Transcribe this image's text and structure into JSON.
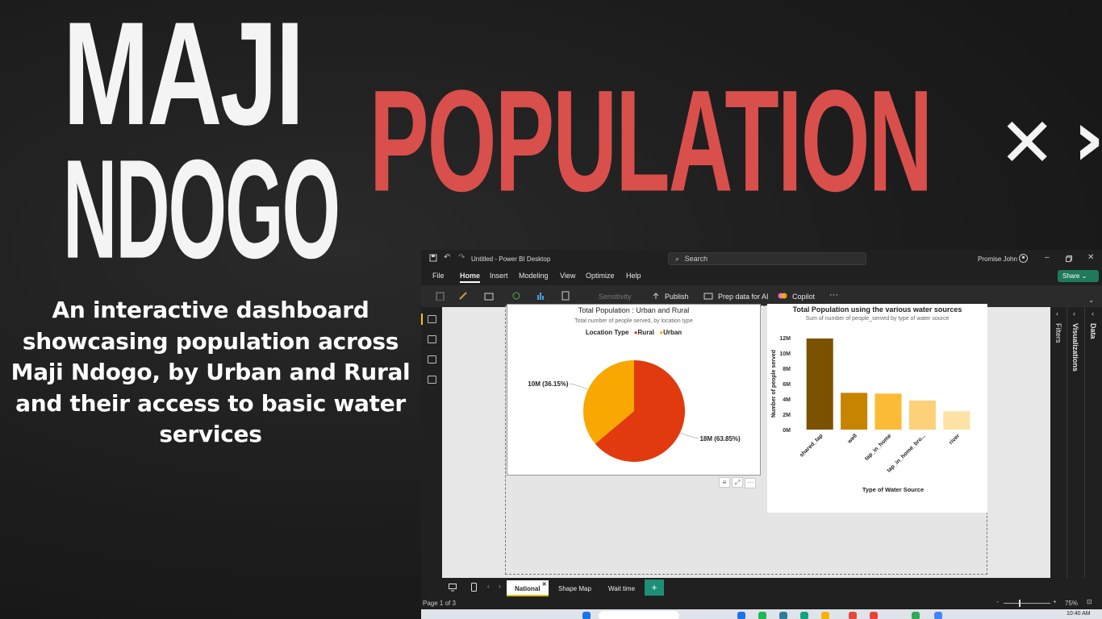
{
  "hero": {
    "line1": "MAJI",
    "line2": "NDOGO",
    "line3": "POPULATION",
    "cross": "✕",
    "chevron": "›",
    "description": "An interactive dashboard showcasing population across Maji Ndogo, by Urban and Rural and their access to basic water services"
  },
  "window": {
    "title": "Untitled - Power BI Desktop",
    "search_placeholder": "Search",
    "user": "Promise John",
    "menu": [
      "File",
      "Home",
      "Insert",
      "Modeling",
      "View",
      "Optimize",
      "Help"
    ],
    "active_menu": "Home",
    "share": "Share",
    "ribbon": {
      "sensitivity": "Sensitivity",
      "publish": "Publish",
      "prep_ai": "Prep data for AI",
      "copilot": "Copilot",
      "more": "···"
    },
    "panes": {
      "filters": "Filters",
      "visualizations": "Visualizations",
      "data": "Data"
    },
    "tabs": [
      "National",
      "Shape Map",
      "Wait time"
    ],
    "active_tab": "National",
    "add_tab": "+",
    "status_page": "Page 1 of 3",
    "zoom": "75%",
    "clock": "10:40 AM"
  },
  "chart_data": [
    {
      "type": "pie",
      "title": "Total Population : Urban and Rural",
      "subtitle": "Total number of people served, by location type",
      "legend_title": "Location Type",
      "legend_position": "top",
      "categories": [
        "Rural",
        "Urban"
      ],
      "values": [
        18,
        10
      ],
      "percentages": [
        63.85,
        36.15
      ],
      "data_labels": [
        "18M (63.85%)",
        "10M (36.15%)"
      ],
      "colors": [
        "#e03a0e",
        "#f8a800"
      ]
    },
    {
      "type": "bar",
      "title": "Total Population using the various water sources",
      "subtitle": "Sum of number of people_served by type of water source",
      "xlabel": "Type of Water Source",
      "ylabel": "Number of people served",
      "categories": [
        "shared_tap",
        "well",
        "tap_in_home",
        "tap_in_home_bro...",
        "river"
      ],
      "values": [
        11.9,
        4.8,
        4.7,
        3.8,
        2.4
      ],
      "ylim": [
        0,
        12
      ],
      "yticks": [
        "0M",
        "2M",
        "4M",
        "6M",
        "8M",
        "10M",
        "12M"
      ],
      "colors": [
        "#7b5200",
        "#c68400",
        "#fbbb37",
        "#fdd07a",
        "#fee2a5"
      ],
      "grid": false
    }
  ]
}
